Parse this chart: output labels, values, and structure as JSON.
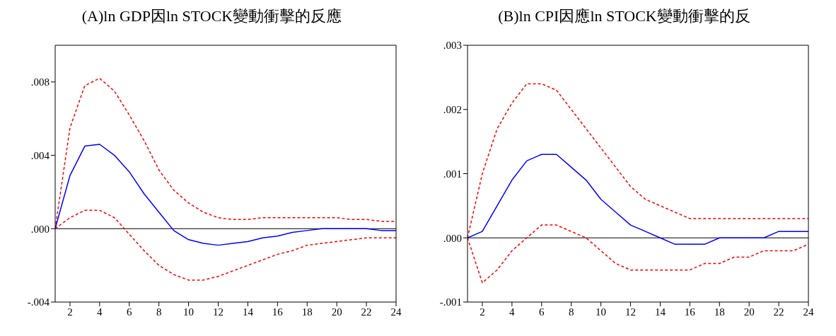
{
  "chart_data": [
    {
      "type": "line",
      "title": "(A)ln GDP因ln STOCK變動衝擊的反應",
      "x": [
        1,
        2,
        3,
        4,
        5,
        6,
        7,
        8,
        9,
        10,
        11,
        12,
        13,
        14,
        15,
        16,
        17,
        18,
        19,
        20,
        21,
        22,
        23,
        24
      ],
      "xlim": [
        1,
        24
      ],
      "xticks": [
        2,
        4,
        6,
        8,
        10,
        12,
        14,
        16,
        18,
        20,
        22,
        24
      ],
      "ylim": [
        -0.004,
        0.01
      ],
      "yticks": [
        {
          "value": -0.004,
          "label": "-.004"
        },
        {
          "value": 0,
          "label": ".000"
        },
        {
          "value": 0.004,
          "label": ".004"
        },
        {
          "value": 0.008,
          "label": ".008"
        }
      ],
      "marker": "none",
      "ref_lines": [
        {
          "axis": "y",
          "value": 0,
          "color": "#000000",
          "line_style": "solid"
        }
      ],
      "series": [
        {
          "color": "#ff0000",
          "line_style": "dashed",
          "values": [
            0,
            0.0055,
            0.0078,
            0.0082,
            0.0075,
            0.0062,
            0.0048,
            0.0032,
            0.0021,
            0.0014,
            0.0009,
            0.0006,
            0.0005,
            0.0005,
            0.0006,
            0.0006,
            0.0006,
            0.0006,
            0.0006,
            0.0006,
            0.0005,
            0.0005,
            0.0004,
            0.0004
          ]
        },
        {
          "color": "#0000ff",
          "line_style": "solid",
          "values": [
            0,
            0.0029,
            0.0045,
            0.0046,
            0.004,
            0.0031,
            0.0019,
            0.0009,
            -0.0001,
            -0.0006,
            -0.0008,
            -0.0009,
            -0.0008,
            -0.0007,
            -0.0005,
            -0.0004,
            -0.0002,
            -0.0001,
            0,
            0,
            0,
            0,
            -0.0001,
            -0.0001
          ]
        },
        {
          "color": "#ff0000",
          "line_style": "dashed",
          "values": [
            0,
            0.0006,
            0.001,
            0.001,
            0.0006,
            -0.0003,
            -0.0012,
            -0.002,
            -0.0025,
            -0.0028,
            -0.0028,
            -0.0026,
            -0.0023,
            -0.002,
            -0.0017,
            -0.0014,
            -0.0012,
            -0.0009,
            -0.0008,
            -0.0007,
            -0.0006,
            -0.0005,
            -0.0005,
            -0.0005
          ]
        }
      ]
    },
    {
      "type": "line",
      "title": "(B)ln CPI因應ln STOCK變動衝擊的反",
      "x": [
        1,
        2,
        3,
        4,
        5,
        6,
        7,
        8,
        9,
        10,
        11,
        12,
        13,
        14,
        15,
        16,
        17,
        18,
        19,
        20,
        21,
        22,
        23,
        24
      ],
      "xlim": [
        1,
        24
      ],
      "xticks": [
        2,
        4,
        6,
        8,
        10,
        12,
        14,
        16,
        18,
        20,
        22,
        24
      ],
      "ylim": [
        -0.001,
        0.003
      ],
      "yticks": [
        {
          "value": -0.001,
          "label": "-.001"
        },
        {
          "value": 0,
          "label": ".000"
        },
        {
          "value": 0.001,
          "label": ".001"
        },
        {
          "value": 0.002,
          "label": ".002"
        },
        {
          "value": 0.003,
          "label": ".003"
        }
      ],
      "marker": "none",
      "ref_lines": [
        {
          "axis": "y",
          "value": 0,
          "color": "#000000",
          "line_style": "solid"
        }
      ],
      "series": [
        {
          "color": "#ff0000",
          "line_style": "dashed",
          "values": [
            0,
            0.001,
            0.0017,
            0.0021,
            0.0024,
            0.0024,
            0.0023,
            0.002,
            0.0017,
            0.0014,
            0.0011,
            0.0008,
            0.0006,
            0.0005,
            0.0004,
            0.0003,
            0.0003,
            0.0003,
            0.0003,
            0.0003,
            0.0003,
            0.0003,
            0.0003,
            0.0003
          ]
        },
        {
          "color": "#0000ff",
          "line_style": "solid",
          "values": [
            0,
            0.0001,
            0.0005,
            0.0009,
            0.0012,
            0.0013,
            0.0013,
            0.0011,
            0.0009,
            0.0006,
            0.0004,
            0.0002,
            0.0001,
            0,
            -0.0001,
            -0.0001,
            -0.0001,
            0,
            0,
            0,
            0,
            0.0001,
            0.0001,
            0.0001
          ]
        },
        {
          "color": "#ff0000",
          "line_style": "dashed",
          "values": [
            0,
            -0.0007,
            -0.0005,
            -0.0002,
            0,
            0.0002,
            0.0002,
            0.0001,
            0,
            -0.0002,
            -0.0004,
            -0.0005,
            -0.0005,
            -0.0005,
            -0.0005,
            -0.0005,
            -0.0004,
            -0.0004,
            -0.0003,
            -0.0003,
            -0.0002,
            -0.0002,
            -0.0002,
            -0.0001
          ]
        }
      ]
    }
  ]
}
